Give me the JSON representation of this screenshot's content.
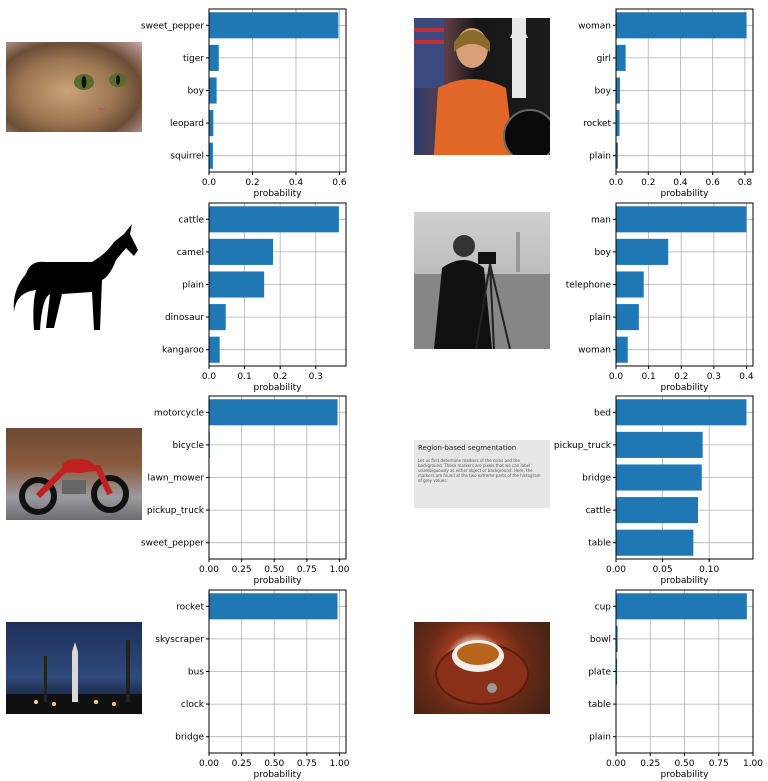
{
  "chart_data": [
    {
      "type": "bar",
      "orientation": "horizontal",
      "categories": [
        "sweet_pepper",
        "tiger",
        "boy",
        "leopard",
        "squirrel"
      ],
      "values": [
        0.595,
        0.045,
        0.035,
        0.02,
        0.018
      ],
      "xlabel": "probability",
      "xlim": [
        0,
        0.63
      ],
      "xticks": [
        0,
        0.2,
        0.4,
        0.6
      ],
      "xtick_labels": [
        "0.0",
        "0.2",
        "0.4",
        "0.6"
      ],
      "grid": true
    },
    {
      "type": "bar",
      "orientation": "horizontal",
      "categories": [
        "woman",
        "girl",
        "boy",
        "rocket",
        "plain"
      ],
      "values": [
        0.81,
        0.06,
        0.025,
        0.022,
        0.012
      ],
      "xlabel": "probability",
      "xlim": [
        0,
        0.85
      ],
      "xticks": [
        0,
        0.2,
        0.4,
        0.6,
        0.8
      ],
      "xtick_labels": [
        "0.0",
        "0.2",
        "0.4",
        "0.6",
        "0.8"
      ],
      "grid": true
    },
    {
      "type": "bar",
      "orientation": "horizontal",
      "categories": [
        "cattle",
        "camel",
        "plain",
        "dinosaur",
        "kangaroo"
      ],
      "values": [
        0.365,
        0.18,
        0.155,
        0.047,
        0.03
      ],
      "xlabel": "probability",
      "xlim": [
        0,
        0.385
      ],
      "xticks": [
        0,
        0.1,
        0.2,
        0.3
      ],
      "xtick_labels": [
        "0.0",
        "0.1",
        "0.2",
        "0.3"
      ],
      "grid": true
    },
    {
      "type": "bar",
      "orientation": "horizontal",
      "categories": [
        "man",
        "boy",
        "telephone",
        "plain",
        "woman"
      ],
      "values": [
        0.4,
        0.16,
        0.085,
        0.07,
        0.036
      ],
      "xlabel": "probability",
      "xlim": [
        0,
        0.42
      ],
      "xticks": [
        0,
        0.1,
        0.2,
        0.3,
        0.4
      ],
      "xtick_labels": [
        "0.0",
        "0.1",
        "0.2",
        "0.3",
        "0.4"
      ],
      "grid": true
    },
    {
      "type": "bar",
      "orientation": "horizontal",
      "categories": [
        "motorcycle",
        "bicycle",
        "lawn_mower",
        "pickup_truck",
        "sweet_pepper"
      ],
      "values": [
        0.985,
        0.006,
        0.001,
        0.001,
        0.001
      ],
      "xlabel": "probability",
      "xlim": [
        0,
        1.05
      ],
      "xticks": [
        0,
        0.25,
        0.5,
        0.75,
        1.0
      ],
      "xtick_labels": [
        "0.00",
        "0.25",
        "0.50",
        "0.75",
        "1.00"
      ],
      "grid": true
    },
    {
      "type": "bar",
      "orientation": "horizontal",
      "categories": [
        "bed",
        "pickup_truck",
        "bridge",
        "cattle",
        "table"
      ],
      "values": [
        0.14,
        0.093,
        0.092,
        0.088,
        0.083
      ],
      "xlabel": "probability",
      "xlim": [
        0,
        0.147
      ],
      "xticks": [
        0,
        0.05,
        0.1
      ],
      "xtick_labels": [
        "0.00",
        "0.05",
        "0.10"
      ],
      "grid": true
    },
    {
      "type": "bar",
      "orientation": "horizontal",
      "categories": [
        "rocket",
        "skyscraper",
        "bus",
        "clock",
        "bridge"
      ],
      "values": [
        0.985,
        0.002,
        0.001,
        0.001,
        0.001
      ],
      "xlabel": "probability",
      "xlim": [
        0,
        1.05
      ],
      "xticks": [
        0,
        0.25,
        0.5,
        0.75,
        1.0
      ],
      "xtick_labels": [
        "0.00",
        "0.25",
        "0.50",
        "0.75",
        "1.00"
      ],
      "grid": true
    },
    {
      "type": "bar",
      "orientation": "horizontal",
      "categories": [
        "cup",
        "bowl",
        "plate",
        "table",
        "plain"
      ],
      "values": [
        0.955,
        0.012,
        0.008,
        0.001,
        0.001
      ],
      "xlabel": "probability",
      "xlim": [
        0,
        1.0
      ],
      "xticks": [
        0,
        0.25,
        0.5,
        0.75,
        1.0
      ],
      "xtick_labels": [
        "0.00",
        "0.25",
        "0.50",
        "0.75",
        "1.00"
      ],
      "grid": true
    }
  ],
  "images": {
    "text_doc": {
      "heading": "Region-based segmentation",
      "body": "Let us first determine markers of the coins and the background. These markers are pixels that we can label unambiguously as either object or background. Here, the markers are found at the two extreme parts of the histogram of grey values:"
    }
  }
}
